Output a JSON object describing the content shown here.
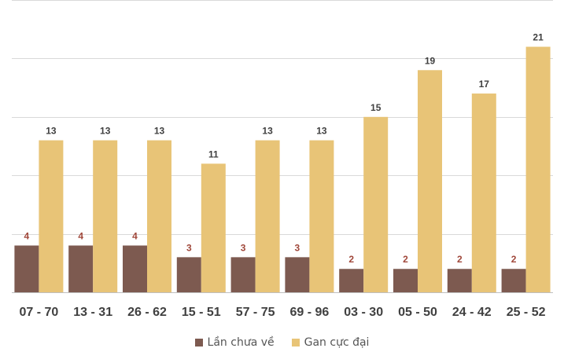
{
  "chart_data": {
    "type": "bar",
    "categories": [
      "07 - 70",
      "13 - 31",
      "26 - 62",
      "15 - 51",
      "57 - 75",
      "69 - 96",
      "03 - 30",
      "05 - 50",
      "24 - 42",
      "25 - 52"
    ],
    "series": [
      {
        "name": "Lần chưa về",
        "values": [
          4,
          4,
          4,
          3,
          3,
          3,
          2,
          2,
          2,
          2
        ],
        "color": "#7d5a50",
        "label_color": "#a0473a"
      },
      {
        "name": "Gan cực đại",
        "values": [
          13,
          13,
          13,
          11,
          13,
          13,
          15,
          19,
          17,
          21
        ],
        "color": "#e8c477",
        "label_color": "#404040"
      }
    ],
    "ylim": [
      0,
      25
    ],
    "grid": true,
    "legend_position": "bottom",
    "gridline_color": "#d9d9d9",
    "axis_color": "#bfbfbf"
  }
}
